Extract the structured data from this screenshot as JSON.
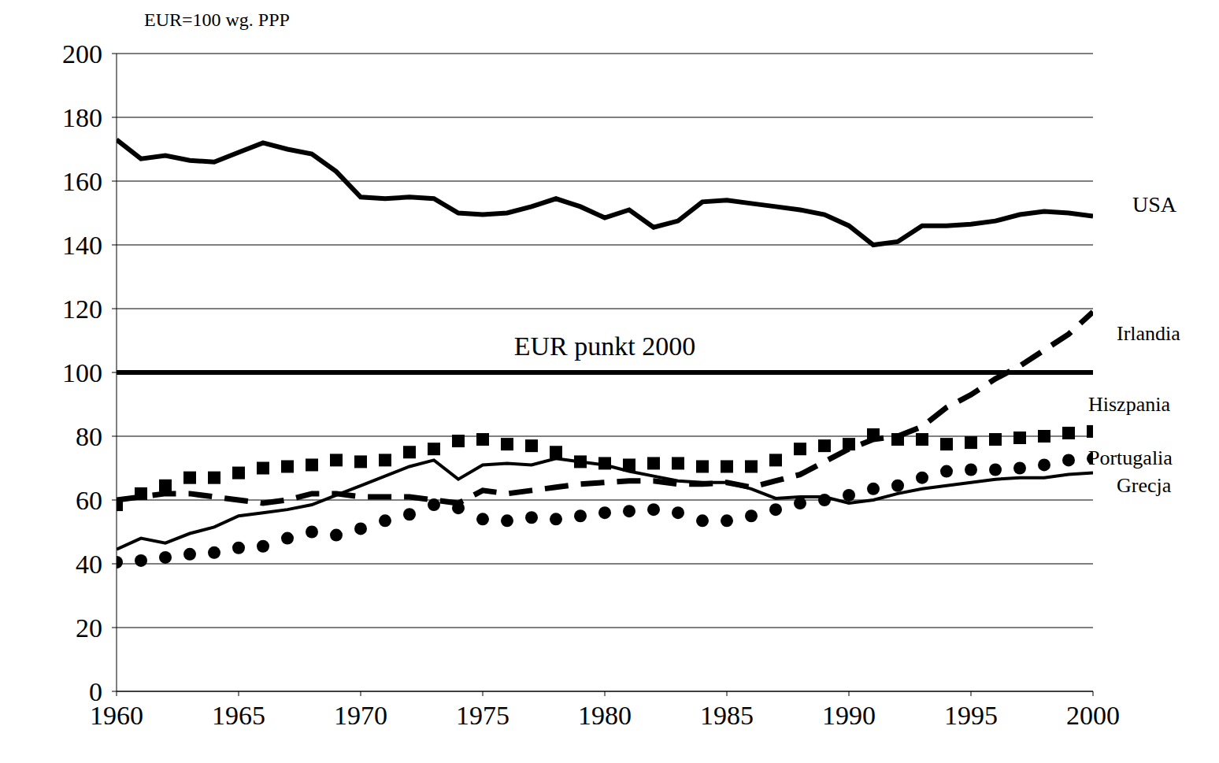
{
  "chart_data": {
    "type": "line",
    "y_label": "EUR=100 wg. PPP",
    "grid": true,
    "xlim": [
      1960,
      2000
    ],
    "xticks": [
      1960,
      1965,
      1970,
      1975,
      1980,
      1985,
      1990,
      1995,
      2000
    ],
    "ylim": [
      0,
      200
    ],
    "yticks": [
      0,
      20,
      40,
      60,
      80,
      100,
      120,
      140,
      160,
      180,
      200
    ],
    "x": [
      1960,
      1961,
      1962,
      1963,
      1964,
      1965,
      1966,
      1967,
      1968,
      1969,
      1970,
      1971,
      1972,
      1973,
      1974,
      1975,
      1976,
      1977,
      1978,
      1979,
      1980,
      1981,
      1982,
      1983,
      1984,
      1985,
      1986,
      1987,
      1988,
      1989,
      1990,
      1991,
      1992,
      1993,
      1994,
      1995,
      1996,
      1997,
      1998,
      1999,
      2000
    ],
    "series": [
      {
        "name": "USA",
        "color": "#000000",
        "line_style": "solid",
        "marker": "none",
        "values": [
          173,
          167,
          168,
          166.5,
          166,
          169,
          172,
          170,
          168.5,
          163,
          155,
          154.5,
          155,
          154.5,
          150,
          149.5,
          150,
          152,
          154.5,
          152,
          148.5,
          151,
          145.5,
          147.5,
          153.5,
          154,
          153,
          152,
          151,
          149.5,
          146,
          140,
          141,
          146,
          146,
          146.5,
          147.5,
          149.5,
          150.5,
          150,
          149
        ]
      },
      {
        "name": "EUR punkt 2000",
        "color": "#000000",
        "line_style": "solid",
        "marker": "none",
        "values": [
          100,
          100,
          100,
          100,
          100,
          100,
          100,
          100,
          100,
          100,
          100,
          100,
          100,
          100,
          100,
          100,
          100,
          100,
          100,
          100,
          100,
          100,
          100,
          100,
          100,
          100,
          100,
          100,
          100,
          100,
          100,
          100,
          100,
          100,
          100,
          100,
          100,
          100,
          100,
          100,
          100
        ]
      },
      {
        "name": "Irlandia",
        "color": "#000000",
        "line_style": "dashed",
        "marker": "none",
        "values": [
          60,
          61,
          62,
          62,
          61,
          60,
          59,
          60,
          62,
          62,
          61,
          61,
          61,
          60,
          59,
          63,
          62,
          63,
          64,
          65,
          65.5,
          66,
          66,
          65,
          65,
          65.5,
          64,
          66,
          68,
          72,
          76,
          79,
          80,
          83,
          89,
          93,
          98,
          102,
          107,
          112,
          119
        ]
      },
      {
        "name": "Hiszpania",
        "color": "#000000",
        "line_style": "none",
        "marker": "square",
        "values": [
          58.5,
          62,
          64.5,
          67,
          67,
          68.5,
          70,
          70.5,
          71,
          72.5,
          72,
          72.5,
          75,
          76,
          78.5,
          79,
          77.5,
          77,
          75,
          72,
          71.5,
          71,
          71.5,
          71.5,
          70.5,
          70.5,
          70.5,
          72.5,
          76,
          77,
          77.5,
          80.5,
          79,
          79,
          77.5,
          78,
          79,
          79.5,
          80,
          81,
          81.5
        ]
      },
      {
        "name": "Portugalia",
        "color": "#000000",
        "line_style": "none",
        "marker": "circle",
        "values": [
          40.5,
          41,
          42,
          43,
          43.5,
          45,
          45.5,
          48,
          50,
          49,
          51,
          53.5,
          55.5,
          58.5,
          57.5,
          54,
          53.5,
          54.5,
          54,
          55,
          56,
          56.5,
          57,
          56,
          53.5,
          53.5,
          55,
          57,
          59,
          60,
          61.5,
          63.5,
          64.5,
          67,
          69,
          69.5,
          69.5,
          70,
          71,
          72.5,
          73
        ]
      },
      {
        "name": "Grecja",
        "color": "#000000",
        "line_style": "solid",
        "marker": "none",
        "values": [
          44.5,
          48,
          46.5,
          49.5,
          51.5,
          55,
          56,
          57,
          58.5,
          61.5,
          64.5,
          67.5,
          70.5,
          72.5,
          66.5,
          71,
          71.5,
          71,
          73,
          72,
          71,
          69,
          67.5,
          66,
          65.5,
          65.5,
          63.5,
          60.5,
          61,
          61,
          59,
          60,
          62,
          63.5,
          64.5,
          65.5,
          66.5,
          67,
          67,
          68,
          68.5
        ]
      }
    ]
  }
}
